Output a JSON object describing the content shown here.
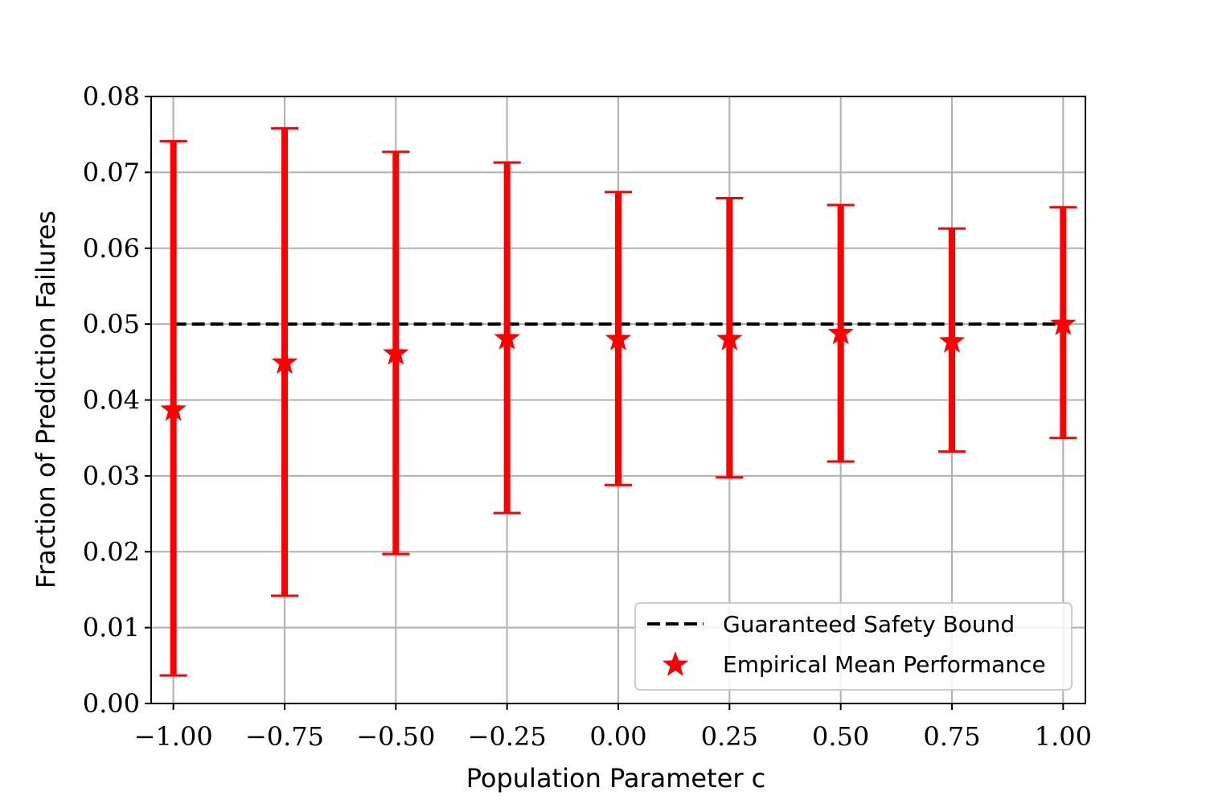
{
  "chart_data": {
    "type": "scatter",
    "title": "",
    "xlabel": "Population Parameter c",
    "ylabel": "Fraction of Prediction Failures",
    "xlim": [
      -1.05,
      1.05
    ],
    "ylim": [
      0.0,
      0.08
    ],
    "xticks": [
      -1.0,
      -0.75,
      -0.5,
      -0.25,
      0.0,
      0.25,
      0.5,
      0.75,
      1.0
    ],
    "xtick_labels": [
      "−1.00",
      "−0.75",
      "−0.50",
      "−0.25",
      "0.00",
      "0.25",
      "0.50",
      "0.75",
      "1.00"
    ],
    "yticks": [
      0.0,
      0.01,
      0.02,
      0.03,
      0.04,
      0.05,
      0.06,
      0.07,
      0.08
    ],
    "ytick_labels": [
      "0.00",
      "0.01",
      "0.02",
      "0.03",
      "0.04",
      "0.05",
      "0.06",
      "0.07",
      "0.08"
    ],
    "grid": true,
    "legend_position": "lower-right",
    "series": [
      {
        "name": "Guaranteed Safety Bound",
        "kind": "dashed-line",
        "color": "#000000",
        "x": [
          -1.0,
          1.0
        ],
        "y": [
          0.05,
          0.05
        ]
      },
      {
        "name": "Empirical Mean Performance",
        "kind": "star-markers-with-error-bars",
        "color": "#ff0000",
        "x": [
          -1.0,
          -0.75,
          -0.5,
          -0.25,
          0.0,
          0.25,
          0.5,
          0.75,
          1.0
        ],
        "y": [
          0.0387,
          0.0449,
          0.0461,
          0.0481,
          0.048,
          0.048,
          0.0488,
          0.0477,
          0.05
        ],
        "y_lower": [
          0.0037,
          0.0142,
          0.0197,
          0.0251,
          0.0288,
          0.0298,
          0.0319,
          0.0332,
          0.035
        ],
        "y_upper": [
          0.0741,
          0.0758,
          0.0727,
          0.0713,
          0.0674,
          0.0666,
          0.0657,
          0.0626,
          0.0654
        ]
      }
    ]
  }
}
